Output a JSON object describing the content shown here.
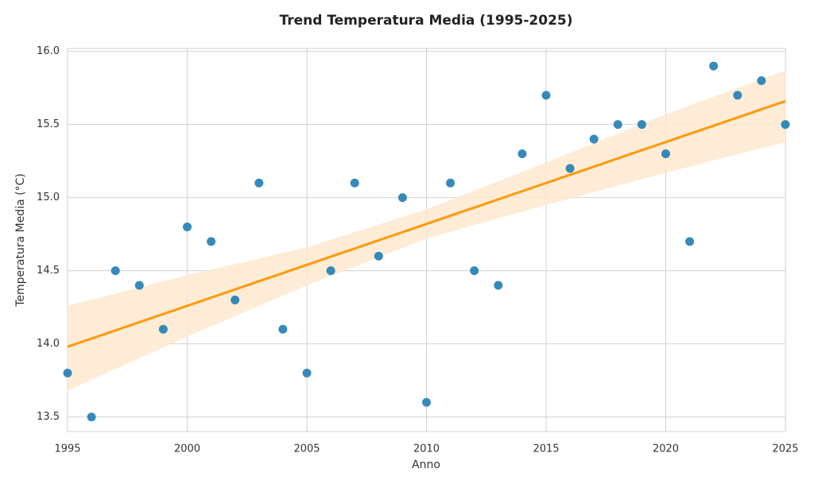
{
  "chart_data": {
    "type": "scatter",
    "title": "Trend Temperatura Media (1995-2025)",
    "x_label": "Anno",
    "y_label": "Temperatura Media (°C)",
    "points": {
      "color": "#2a84b5",
      "x": [
        1995,
        1996,
        1997,
        1998,
        1999,
        2000,
        2001,
        2002,
        2003,
        2004,
        2005,
        2006,
        2007,
        2008,
        2009,
        2010,
        2011,
        2012,
        2013,
        2014,
        2015,
        2016,
        2017,
        2018,
        2019,
        2020,
        2021,
        2022,
        2023,
        2024,
        2025
      ],
      "values": [
        13.8,
        13.5,
        14.5,
        14.4,
        14.1,
        14.8,
        14.7,
        14.3,
        15.1,
        14.1,
        13.8,
        14.5,
        15.1,
        14.6,
        15.0,
        13.6,
        15.1,
        14.5,
        14.4,
        15.3,
        15.7,
        15.2,
        15.4,
        15.5,
        15.5,
        15.3,
        14.7,
        15.9,
        15.7,
        15.8,
        15.5
      ]
    },
    "trend": {
      "color": "#ff9a0a",
      "x": [
        1995,
        2025
      ],
      "values": [
        13.98,
        15.66
      ]
    },
    "band": {
      "color": "#ffe9cf",
      "x": [
        1995,
        2000,
        2005,
        2010,
        2015,
        2020,
        2025
      ],
      "upper": [
        14.26,
        14.47,
        14.66,
        14.92,
        15.24,
        15.57,
        15.87
      ],
      "lower": [
        13.68,
        14.05,
        14.4,
        14.72,
        14.95,
        15.17,
        15.38
      ]
    },
    "xlim": [
      1995,
      2025
    ],
    "ylim": [
      13.4,
      16.02
    ],
    "xticks": [
      1995,
      2000,
      2005,
      2010,
      2015,
      2020,
      2025
    ],
    "yticks": [
      13.5,
      {
        "value": 14,
        "label": "14.0"
      },
      14.5,
      {
        "value": 15,
        "label": "15.0"
      },
      15.5,
      {
        "value": 16,
        "label": "16.0"
      }
    ],
    "grid": true
  }
}
